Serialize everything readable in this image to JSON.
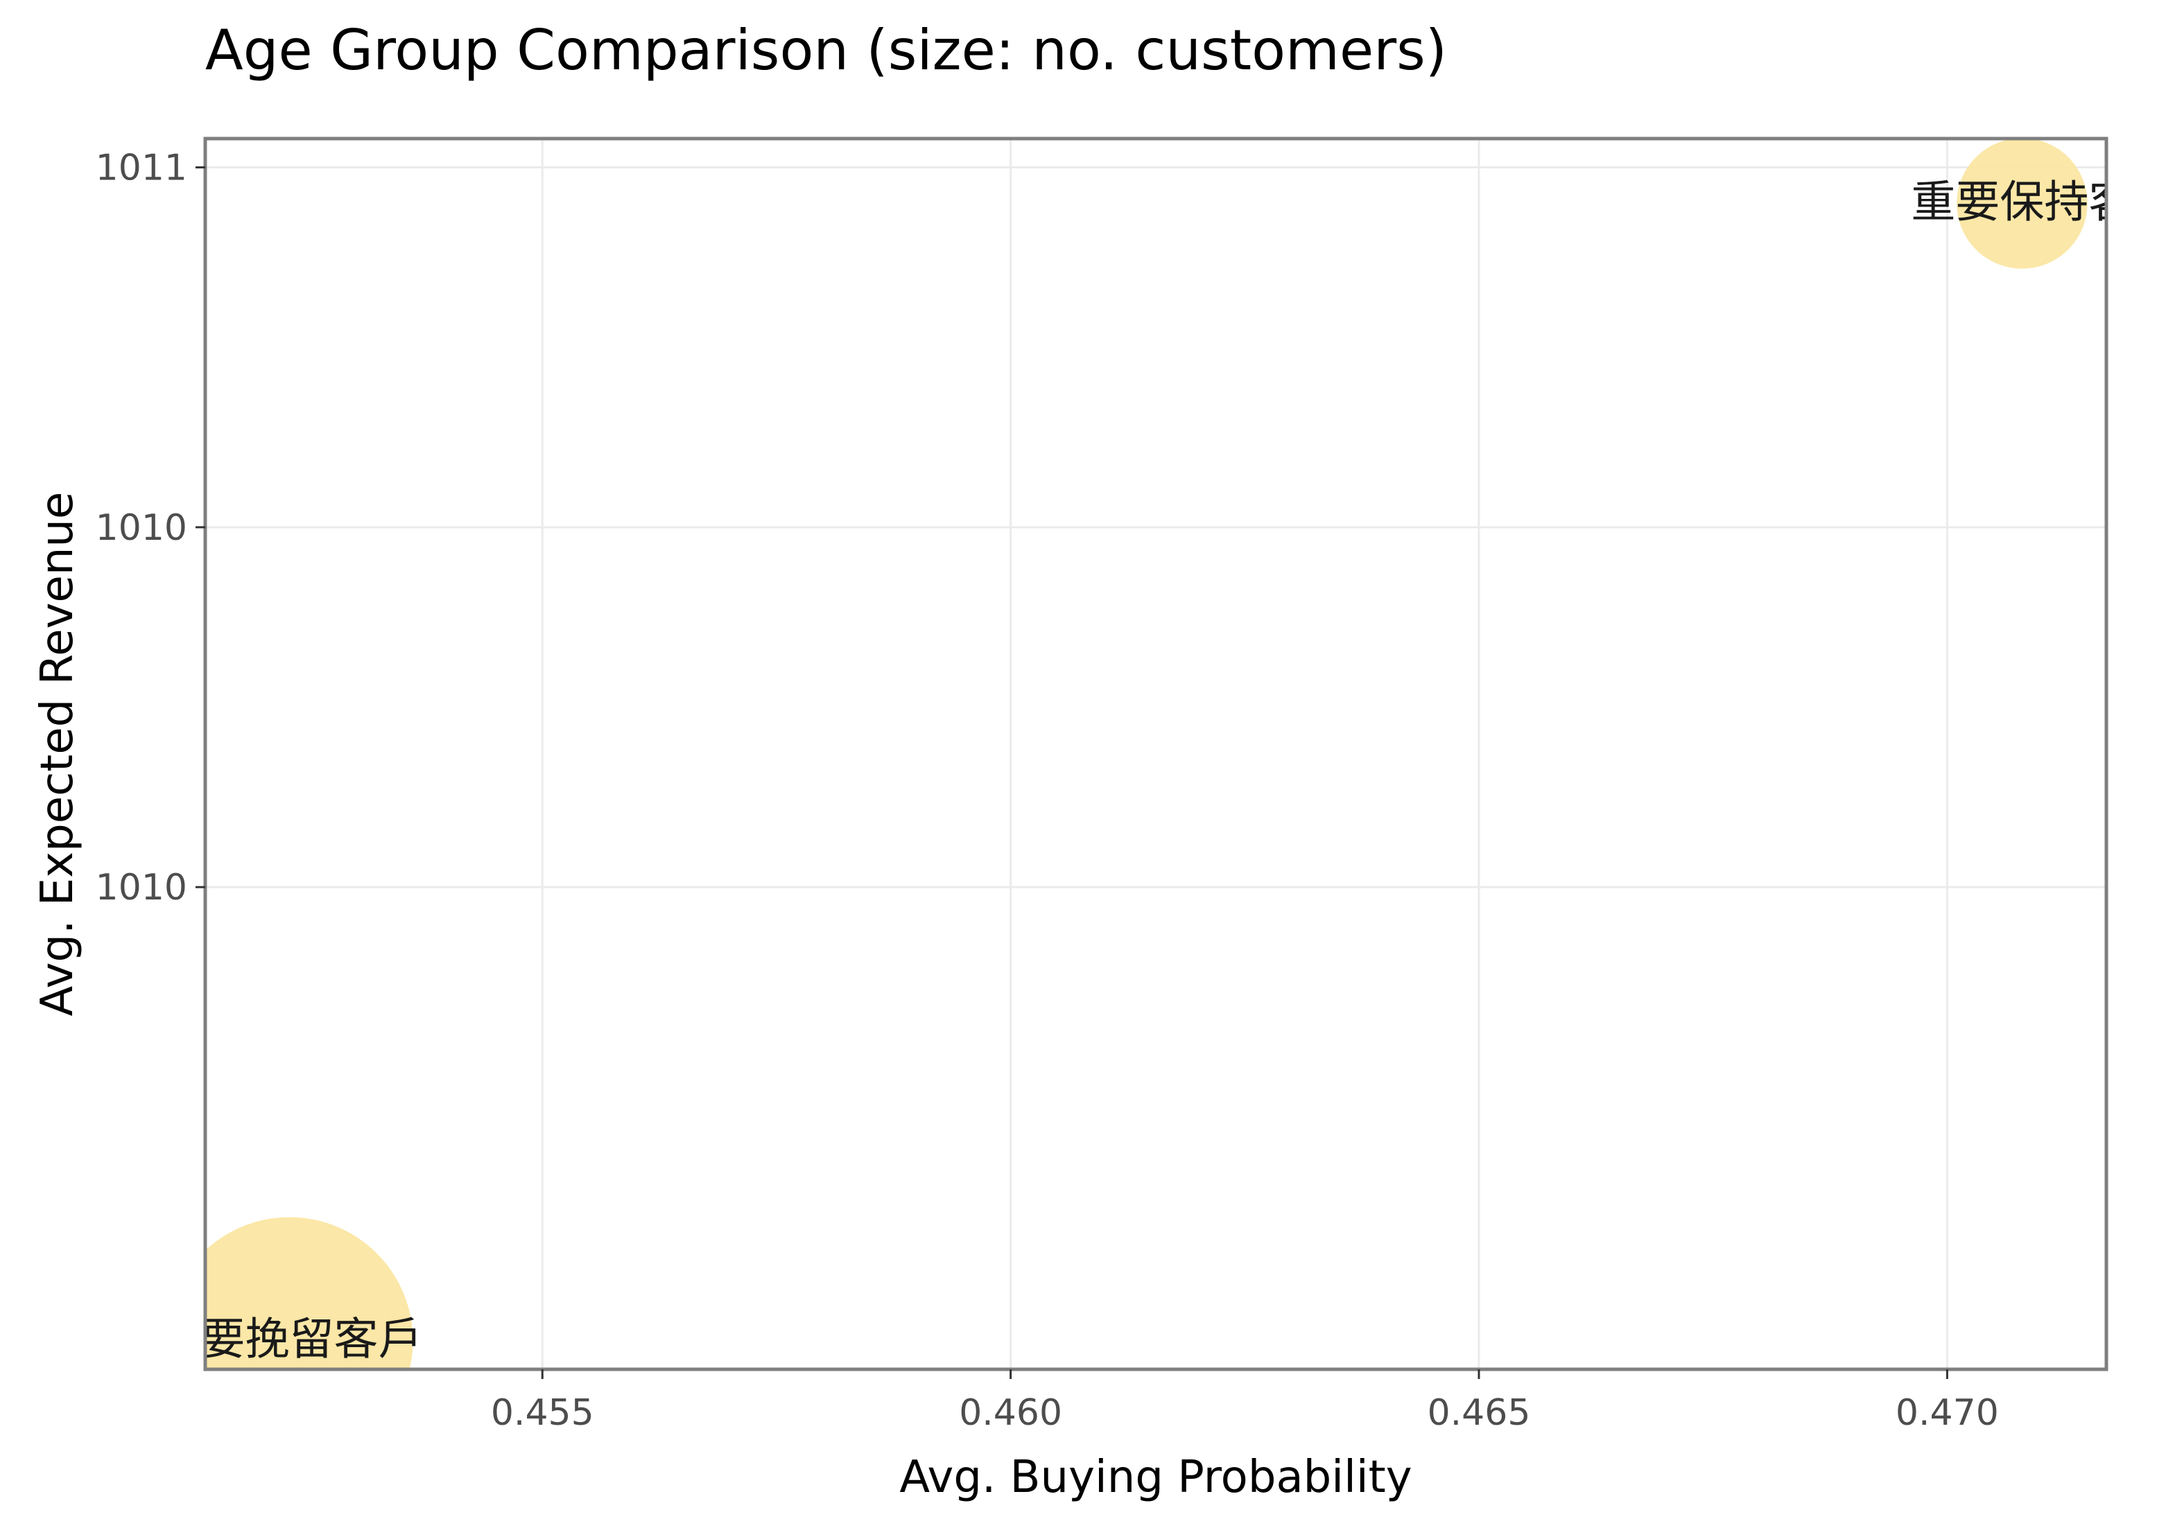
{
  "chart_data": {
    "type": "scatter",
    "title": "Age Group Comparison (size: no. customers)",
    "xlabel": "Avg. Buying Probability",
    "ylabel": "Avg. Expected Revenue",
    "xlim": [
      0.4514,
      0.4717
    ],
    "ylim": [
      1009.33,
      1011.04
    ],
    "x_ticks": [
      0.455,
      0.46,
      0.465,
      0.47
    ],
    "x_tick_labels": [
      "0.455",
      "0.460",
      "0.465",
      "0.470"
    ],
    "y_ticks": [
      1011.0,
      1010.5,
      1010.0
    ],
    "y_tick_labels": [
      "1011",
      "1010",
      "1010"
    ],
    "grid": true,
    "bubble_color": "#fbe6a2",
    "points": [
      {
        "label": "重要挽留客戶",
        "x": 0.4523,
        "y": 1009.37,
        "size": 1.0
      },
      {
        "label": "重要保持客",
        "x": 0.4708,
        "y": 1010.95,
        "size": 0.28
      }
    ]
  }
}
